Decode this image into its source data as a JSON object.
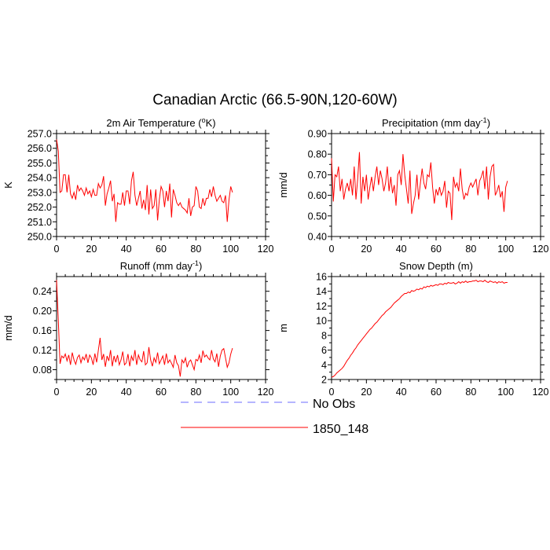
{
  "figure": {
    "title": "Canadian Arctic (66.5-90N,120-60W)"
  },
  "legend": {
    "entries": [
      {
        "label": "No Obs",
        "color": "#6b6bff",
        "dashed": true
      },
      {
        "label": "1850_148",
        "color": "#ff0000",
        "dashed": false
      }
    ]
  },
  "colors": {
    "model": "#ff0000",
    "obs": "#6b6bff",
    "axis": "#000000"
  },
  "chart_data": [
    {
      "type": "line",
      "title": "2m Air Temperature (",
      "title_unit": "K)",
      "title_sup": "o",
      "ylabel": "K",
      "xlabel": "",
      "xlim": [
        0,
        120
      ],
      "ylim": [
        250.0,
        257.0
      ],
      "xticks": [
        0,
        20,
        40,
        60,
        80,
        100,
        120
      ],
      "yticks": [
        250.0,
        251.0,
        252.0,
        253.0,
        254.0,
        255.0,
        256.0,
        257.0
      ],
      "ytick_decimals": 1,
      "series": [
        {
          "name": "1850_148",
          "values": [
            256.6,
            255.8,
            253.0,
            253.1,
            254.2,
            254.2,
            253.0,
            254.2,
            252.9,
            252.6,
            253.0,
            252.5,
            253.5,
            253.1,
            253.3,
            253.1,
            252.8,
            253.3,
            252.9,
            253.1,
            252.7,
            253.2,
            252.8,
            252.8,
            253.6,
            253.3,
            253.5,
            254.1,
            252.1,
            252.9,
            253.3,
            253.8,
            252.4,
            252.9,
            251.0,
            252.3,
            252.2,
            252.2,
            253.0,
            252.1,
            253.1,
            253.1,
            252.2,
            253.8,
            254.4,
            252.8,
            252.1,
            252.6,
            253.1,
            251.9,
            252.5,
            251.8,
            253.5,
            251.5,
            253.2,
            251.9,
            252.1,
            253.2,
            251.1,
            252.5,
            253.4,
            253.1,
            252.0,
            253.1,
            252.4,
            253.6,
            251.3,
            253.2,
            252.8,
            252.3,
            252.1,
            252.3,
            252.0,
            251.9,
            251.8,
            251.6,
            252.6,
            251.4,
            252.0,
            252.1,
            253.4,
            253.1,
            252.0,
            251.9,
            252.6,
            252.1,
            252.6,
            252.6,
            253.2,
            252.7,
            253.4,
            252.8,
            252.4,
            252.6,
            252.8,
            252.4,
            252.3,
            252.8,
            251.0,
            252.5,
            253.4,
            253.0
          ]
        }
      ]
    },
    {
      "type": "line",
      "title": "Precipitation (mm day",
      "title_sup": "-1",
      "title_unit": ")",
      "ylabel": "mm/d",
      "xlabel": "",
      "xlim": [
        0,
        120
      ],
      "ylim": [
        0.4,
        0.9
      ],
      "xticks": [
        0,
        20,
        40,
        60,
        80,
        100,
        120
      ],
      "yticks": [
        0.4,
        0.5,
        0.6,
        0.7,
        0.8,
        0.9
      ],
      "ytick_decimals": 2,
      "series": [
        {
          "name": "1850_148",
          "values": [
            0.78,
            0.57,
            0.7,
            0.69,
            0.74,
            0.62,
            0.68,
            0.58,
            0.63,
            0.66,
            0.62,
            0.68,
            0.6,
            0.74,
            0.58,
            0.68,
            0.81,
            0.56,
            0.69,
            0.62,
            0.7,
            0.58,
            0.64,
            0.69,
            0.62,
            0.69,
            0.74,
            0.65,
            0.72,
            0.68,
            0.62,
            0.66,
            0.74,
            0.62,
            0.69,
            0.61,
            0.65,
            0.55,
            0.7,
            0.72,
            0.65,
            0.8,
            0.7,
            0.63,
            0.56,
            0.72,
            0.51,
            0.56,
            0.6,
            0.7,
            0.58,
            0.66,
            0.73,
            0.66,
            0.63,
            0.7,
            0.69,
            0.76,
            0.64,
            0.56,
            0.63,
            0.6,
            0.64,
            0.6,
            0.62,
            0.67,
            0.54,
            0.62,
            0.61,
            0.48,
            0.69,
            0.64,
            0.66,
            0.62,
            0.73,
            0.63,
            0.58,
            0.61,
            0.6,
            0.64,
            0.66,
            0.64,
            0.66,
            0.68,
            0.6,
            0.67,
            0.69,
            0.72,
            0.63,
            0.74,
            0.58,
            0.69,
            0.74,
            0.75,
            0.6,
            0.62,
            0.65,
            0.59,
            0.62,
            0.52,
            0.64,
            0.67
          ]
        }
      ]
    },
    {
      "type": "line",
      "title": "Runoff (mm day",
      "title_sup": "-1",
      "title_unit": ")",
      "ylabel": "mm/d",
      "xlabel": "",
      "xlim": [
        0,
        120
      ],
      "ylim": [
        0.06,
        0.27
      ],
      "xticks": [
        0,
        20,
        40,
        60,
        80,
        100,
        120
      ],
      "yticks": [
        0.08,
        0.12,
        0.16,
        0.2,
        0.24
      ],
      "ytick_decimals": 2,
      "series": [
        {
          "name": "1850_148",
          "values": [
            0.263,
            0.18,
            0.092,
            0.108,
            0.104,
            0.112,
            0.098,
            0.11,
            0.09,
            0.115,
            0.1,
            0.091,
            0.105,
            0.11,
            0.094,
            0.106,
            0.1,
            0.112,
            0.094,
            0.11,
            0.104,
            0.09,
            0.113,
            0.095,
            0.12,
            0.145,
            0.1,
            0.112,
            0.086,
            0.108,
            0.098,
            0.12,
            0.087,
            0.108,
            0.095,
            0.11,
            0.09,
            0.1,
            0.117,
            0.09,
            0.094,
            0.112,
            0.087,
            0.108,
            0.098,
            0.12,
            0.09,
            0.11,
            0.1,
            0.096,
            0.118,
            0.09,
            0.094,
            0.126,
            0.1,
            0.087,
            0.104,
            0.095,
            0.115,
            0.092,
            0.1,
            0.108,
            0.09,
            0.113,
            0.094,
            0.1,
            0.093,
            0.085,
            0.11,
            0.094,
            0.088,
            0.066,
            0.1,
            0.094,
            0.104,
            0.085,
            0.096,
            0.1,
            0.09,
            0.08,
            0.101,
            0.098,
            0.11,
            0.094,
            0.119,
            0.106,
            0.11,
            0.104,
            0.1,
            0.12,
            0.102,
            0.096,
            0.113,
            0.086,
            0.108,
            0.12,
            0.123,
            0.104,
            0.085,
            0.094,
            0.112,
            0.124
          ]
        }
      ]
    },
    {
      "type": "line",
      "title": "Snow Depth (m)",
      "title_sup": "",
      "title_unit": "",
      "ylabel": "m",
      "xlabel": "",
      "xlim": [
        0,
        120
      ],
      "ylim": [
        2,
        16
      ],
      "xticks": [
        0,
        20,
        40,
        60,
        80,
        100,
        120
      ],
      "yticks": [
        2,
        4,
        6,
        8,
        10,
        12,
        14,
        16
      ],
      "ytick_decimals": 0,
      "series": [
        {
          "name": "1850_148",
          "values": [
            2.3,
            2.4,
            2.6,
            2.9,
            3.1,
            3.3,
            3.5,
            3.8,
            4.2,
            4.6,
            4.9,
            5.3,
            5.6,
            6.0,
            6.3,
            6.7,
            7.0,
            7.3,
            7.6,
            7.9,
            8.2,
            8.5,
            8.8,
            9.0,
            9.3,
            9.6,
            9.8,
            10.1,
            10.4,
            10.7,
            10.9,
            11.2,
            11.4,
            11.6,
            11.8,
            12.1,
            12.4,
            12.6,
            12.8,
            13.0,
            13.3,
            13.5,
            13.7,
            13.7,
            13.9,
            13.8,
            14.1,
            14.0,
            14.1,
            14.3,
            14.2,
            14.4,
            14.3,
            14.6,
            14.5,
            14.7,
            14.6,
            14.8,
            14.7,
            14.8,
            14.9,
            14.8,
            15.0,
            15.0,
            14.9,
            15.1,
            15.0,
            15.2,
            15.1,
            15.1,
            15.2,
            15.0,
            15.1,
            15.3,
            15.1,
            15.3,
            15.2,
            15.4,
            15.2,
            15.3,
            15.3,
            15.4,
            15.4,
            15.5,
            15.3,
            15.4,
            15.4,
            15.3,
            15.5,
            15.3,
            15.2,
            15.4,
            15.3,
            15.2,
            15.3,
            15.1,
            15.3,
            15.2,
            15.3,
            15.1,
            15.2,
            15.2
          ]
        }
      ]
    }
  ]
}
